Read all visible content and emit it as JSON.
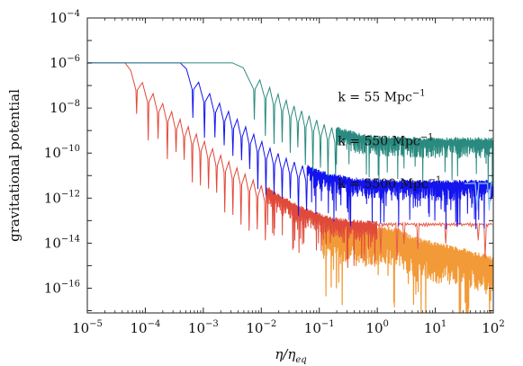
{
  "chart_data": {
    "type": "line",
    "title": "",
    "xlabel": "η/η_eq",
    "ylabel": "gravitational potential",
    "xscale": "log",
    "yscale": "log",
    "xlim_log10": [
      -5,
      2
    ],
    "ylim_log10": [
      -17.1,
      -4
    ],
    "grid": false,
    "legend": "none",
    "x_tick_exponents": [
      -5,
      -4,
      -3,
      -2,
      -1,
      0,
      1,
      2
    ],
    "y_tick_exponents": [
      -16,
      -14,
      -12,
      -10,
      -8,
      -6,
      -4
    ],
    "tick_base": "10",
    "annotations": [
      {
        "text": "k = 55 Mpc",
        "superscript": "−1",
        "at_log10": [
          -0.68,
          -7.7
        ]
      },
      {
        "text": "k = 550 Mpc",
        "superscript": "−1",
        "at_log10": [
          -0.68,
          -9.65
        ]
      },
      {
        "text": "k = 5500 Mpc",
        "superscript": "−1",
        "at_log10": [
          -0.68,
          -11.55
        ]
      }
    ],
    "series": [
      {
        "color": "#2a8a7f",
        "plateau_log10": -5.99,
        "decay_start_log10x": -2.5,
        "envelope_log10": [
          [
            -2.4,
            -6.05
          ],
          [
            -2.1,
            -6.6
          ],
          [
            -1.8,
            -7.2
          ],
          [
            -1.5,
            -7.8
          ],
          [
            -1.2,
            -8.3
          ],
          [
            -0.9,
            -8.75
          ],
          [
            -0.6,
            -9.05
          ],
          [
            -0.3,
            -9.25
          ],
          [
            0,
            -9.35
          ],
          [
            0.5,
            -9.42
          ],
          [
            1,
            -9.44
          ],
          [
            2,
            -9.45
          ]
        ],
        "final_log10": -9.45,
        "zero_crossings_log10x": [
          -2.12,
          -1.93,
          -1.78,
          -1.64,
          -1.5,
          -1.37,
          -1.24,
          -1.11,
          -0.98,
          -0.85,
          -0.72
        ]
      },
      {
        "color": "#1414ee",
        "plateau_log10": -5.99,
        "decay_start_log10x": -3.4,
        "envelope_log10": [
          [
            -3.35,
            -6.1
          ],
          [
            -3.1,
            -6.8
          ],
          [
            -2.8,
            -7.6
          ],
          [
            -2.5,
            -8.3
          ],
          [
            -2.2,
            -9.0
          ],
          [
            -1.9,
            -9.7
          ],
          [
            -1.6,
            -10.2
          ],
          [
            -1.3,
            -10.55
          ],
          [
            -1.0,
            -10.9
          ],
          [
            -0.5,
            -11.2
          ],
          [
            0,
            -11.3
          ],
          [
            1,
            -11.33
          ],
          [
            2,
            -11.33
          ]
        ],
        "final_log10": -11.33,
        "zero_crossings_log10x": [
          -3.18,
          -2.98,
          -2.8,
          -2.64,
          -2.49,
          -2.34,
          -2.2,
          -2.06,
          -1.92,
          -1.78,
          -1.64,
          -1.5,
          -1.36,
          -1.22
        ],
        "late_color": "#8fc4f2",
        "late_final_log10": -11.35,
        "late_dips_log10x": [
          1.72,
          1.93
        ]
      },
      {
        "color": "#e04a3a",
        "plateau_log10": -5.99,
        "decay_start_log10x": -4.35,
        "envelope_log10": [
          [
            -4.3,
            -6.2
          ],
          [
            -4.0,
            -7.0
          ],
          [
            -3.7,
            -7.8
          ],
          [
            -3.4,
            -8.5
          ],
          [
            -3.1,
            -9.2
          ],
          [
            -2.8,
            -9.9
          ],
          [
            -2.5,
            -10.5
          ],
          [
            -2.2,
            -11.1
          ],
          [
            -1.9,
            -11.6
          ],
          [
            -1.6,
            -12.1
          ],
          [
            -1.3,
            -12.5
          ],
          [
            -1.0,
            -12.8
          ],
          [
            -0.7,
            -13.0
          ],
          [
            -0.4,
            -13.1
          ],
          [
            -0.1,
            -13.15
          ],
          [
            0,
            -13.15
          ]
        ],
        "zero_crossings_log10x": [
          -4.15,
          -3.95,
          -3.78,
          -3.62,
          -3.47,
          -3.33,
          -3.19,
          -3.05,
          -2.91,
          -2.77,
          -2.63,
          -2.49,
          -2.35,
          -2.21,
          -2.07,
          -1.93
        ],
        "late_color": "#e85a4a",
        "late_level_log10": -13.15,
        "late_continue_log10x": [
          0,
          2
        ]
      },
      {
        "color": "#f29a38",
        "band_start_log10x": -0.95,
        "envelope_log10": [
          [
            -0.95,
            -13.2
          ],
          [
            -0.5,
            -13.4
          ],
          [
            0,
            -13.55
          ],
          [
            0.3,
            -13.5
          ],
          [
            0.6,
            -13.9
          ],
          [
            1.0,
            -14.2
          ],
          [
            1.4,
            -14.4
          ],
          [
            1.7,
            -14.6
          ],
          [
            2.0,
            -14.8
          ]
        ]
      }
    ]
  }
}
